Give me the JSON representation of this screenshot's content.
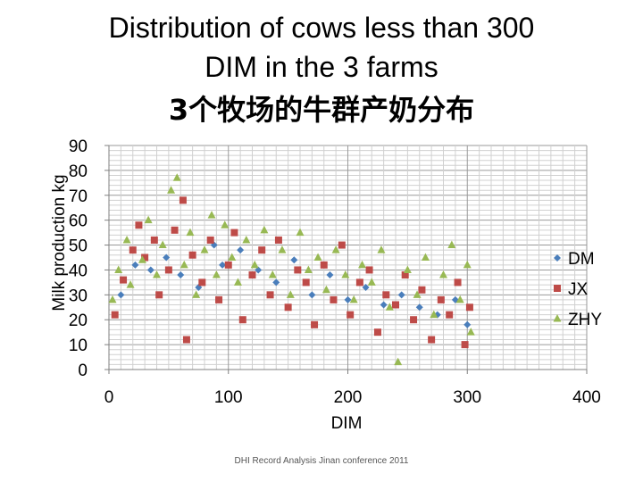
{
  "chart_data": {
    "type": "scatter",
    "title": [
      "Distribution of cows less than 300",
      "DIM in the 3 farms",
      "3个牧场的牛群产奶分布"
    ],
    "xlabel": "DIM",
    "ylabel": "Milk production kg",
    "xlim": [
      0,
      400
    ],
    "ylim": [
      0,
      90
    ],
    "xticks": [
      "0",
      "100",
      "200",
      "300",
      "400"
    ],
    "yticks": [
      "0",
      "10",
      "20",
      "30",
      "40",
      "50",
      "60",
      "70",
      "80",
      "90"
    ],
    "grid": true,
    "legend_position": "right",
    "series": [
      {
        "name": "DM",
        "marker": "diamond",
        "color": "#4a7ebb",
        "points": [
          [
            10,
            30
          ],
          [
            22,
            42
          ],
          [
            35,
            40
          ],
          [
            48,
            45
          ],
          [
            60,
            38
          ],
          [
            75,
            33
          ],
          [
            88,
            50
          ],
          [
            95,
            42
          ],
          [
            110,
            48
          ],
          [
            125,
            40
          ],
          [
            140,
            35
          ],
          [
            155,
            44
          ],
          [
            170,
            30
          ],
          [
            185,
            38
          ],
          [
            200,
            28
          ],
          [
            215,
            33
          ],
          [
            230,
            26
          ],
          [
            245,
            30
          ],
          [
            260,
            25
          ],
          [
            275,
            22
          ],
          [
            290,
            28
          ],
          [
            300,
            18
          ]
        ]
      },
      {
        "name": "JX",
        "marker": "square",
        "color": "#be4b48",
        "points": [
          [
            5,
            22
          ],
          [
            12,
            36
          ],
          [
            20,
            48
          ],
          [
            25,
            58
          ],
          [
            30,
            45
          ],
          [
            38,
            52
          ],
          [
            42,
            30
          ],
          [
            50,
            40
          ],
          [
            55,
            56
          ],
          [
            62,
            68
          ],
          [
            65,
            12
          ],
          [
            70,
            46
          ],
          [
            78,
            35
          ],
          [
            85,
            52
          ],
          [
            92,
            28
          ],
          [
            100,
            42
          ],
          [
            105,
            55
          ],
          [
            112,
            20
          ],
          [
            120,
            38
          ],
          [
            128,
            48
          ],
          [
            135,
            30
          ],
          [
            142,
            52
          ],
          [
            150,
            25
          ],
          [
            158,
            40
          ],
          [
            165,
            35
          ],
          [
            172,
            18
          ],
          [
            180,
            42
          ],
          [
            188,
            28
          ],
          [
            195,
            50
          ],
          [
            202,
            22
          ],
          [
            210,
            35
          ],
          [
            218,
            40
          ],
          [
            225,
            15
          ],
          [
            232,
            30
          ],
          [
            240,
            26
          ],
          [
            248,
            38
          ],
          [
            255,
            20
          ],
          [
            262,
            32
          ],
          [
            270,
            12
          ],
          [
            278,
            28
          ],
          [
            285,
            22
          ],
          [
            292,
            35
          ],
          [
            298,
            10
          ],
          [
            302,
            25
          ]
        ]
      },
      {
        "name": "ZHY",
        "marker": "triangle",
        "color": "#98b954",
        "points": [
          [
            3,
            28
          ],
          [
            8,
            40
          ],
          [
            15,
            52
          ],
          [
            18,
            34
          ],
          [
            28,
            44
          ],
          [
            33,
            60
          ],
          [
            40,
            38
          ],
          [
            45,
            50
          ],
          [
            52,
            72
          ],
          [
            57,
            77
          ],
          [
            63,
            42
          ],
          [
            68,
            55
          ],
          [
            73,
            30
          ],
          [
            80,
            48
          ],
          [
            86,
            62
          ],
          [
            90,
            38
          ],
          [
            97,
            58
          ],
          [
            103,
            45
          ],
          [
            108,
            35
          ],
          [
            115,
            52
          ],
          [
            122,
            42
          ],
          [
            130,
            56
          ],
          [
            137,
            38
          ],
          [
            145,
            48
          ],
          [
            152,
            30
          ],
          [
            160,
            55
          ],
          [
            167,
            40
          ],
          [
            175,
            45
          ],
          [
            182,
            32
          ],
          [
            190,
            48
          ],
          [
            198,
            38
          ],
          [
            205,
            28
          ],
          [
            212,
            42
          ],
          [
            220,
            35
          ],
          [
            228,
            48
          ],
          [
            235,
            25
          ],
          [
            242,
            3
          ],
          [
            250,
            40
          ],
          [
            258,
            30
          ],
          [
            265,
            45
          ],
          [
            272,
            22
          ],
          [
            280,
            38
          ],
          [
            287,
            50
          ],
          [
            294,
            28
          ],
          [
            300,
            42
          ],
          [
            303,
            15
          ]
        ]
      }
    ],
    "footer": "DHI Record Analysis Jinan conference 2011"
  }
}
